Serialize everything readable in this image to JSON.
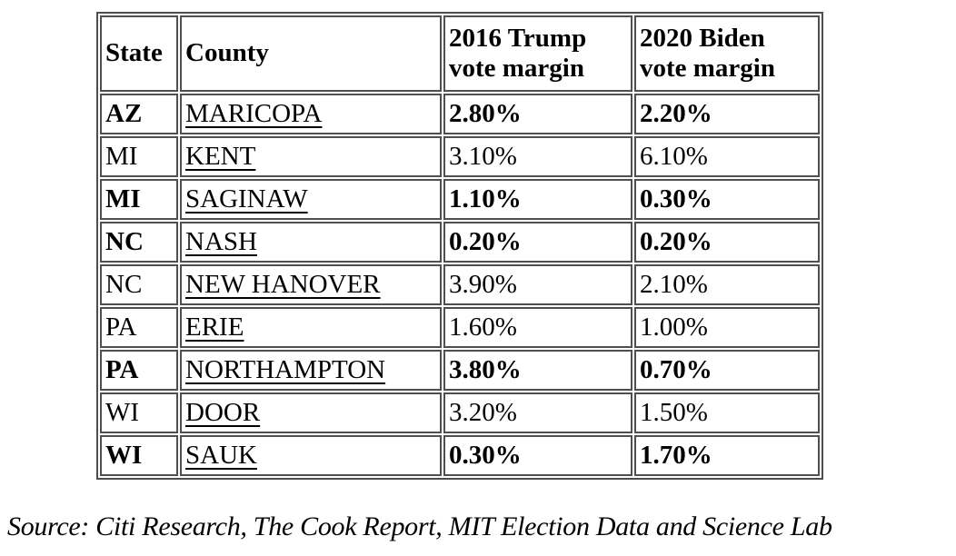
{
  "chart_data": {
    "type": "table",
    "columns": [
      "State",
      "County",
      "2016 Trump vote margin",
      "2020 Biden vote margin"
    ],
    "rows": [
      {
        "state": "AZ",
        "county": "MARICOPA",
        "trump_2016": "2.80%",
        "biden_2020": "2.20%",
        "emphasis": true
      },
      {
        "state": "MI",
        "county": "KENT",
        "trump_2016": "3.10%",
        "biden_2020": "6.10%",
        "emphasis": false
      },
      {
        "state": "MI",
        "county": "SAGINAW",
        "trump_2016": "1.10%",
        "biden_2020": "0.30%",
        "emphasis": true
      },
      {
        "state": "NC",
        "county": "NASH",
        "trump_2016": "0.20%",
        "biden_2020": "0.20%",
        "emphasis": true
      },
      {
        "state": "NC",
        "county": "NEW HANOVER",
        "trump_2016": "3.90%",
        "biden_2020": "2.10%",
        "emphasis": false
      },
      {
        "state": "PA",
        "county": "ERIE",
        "trump_2016": "1.60%",
        "biden_2020": "1.00%",
        "emphasis": false
      },
      {
        "state": "PA",
        "county": "NORTHAMPTON",
        "trump_2016": "3.80%",
        "biden_2020": "0.70%",
        "emphasis": true
      },
      {
        "state": "WI",
        "county": "DOOR",
        "trump_2016": "3.20%",
        "biden_2020": "1.50%",
        "emphasis": false
      },
      {
        "state": "WI",
        "county": "SAUK",
        "trump_2016": "0.30%",
        "biden_2020": "1.70%",
        "emphasis": true
      }
    ],
    "source": "Source: Citi Research, The Cook Report, MIT Election Data and Science Lab",
    "layout": {
      "border_color": "#4d4d4d",
      "text_color": "#000000",
      "background": "#ffffff",
      "legend_position": "none",
      "grid": "table-borders"
    }
  }
}
